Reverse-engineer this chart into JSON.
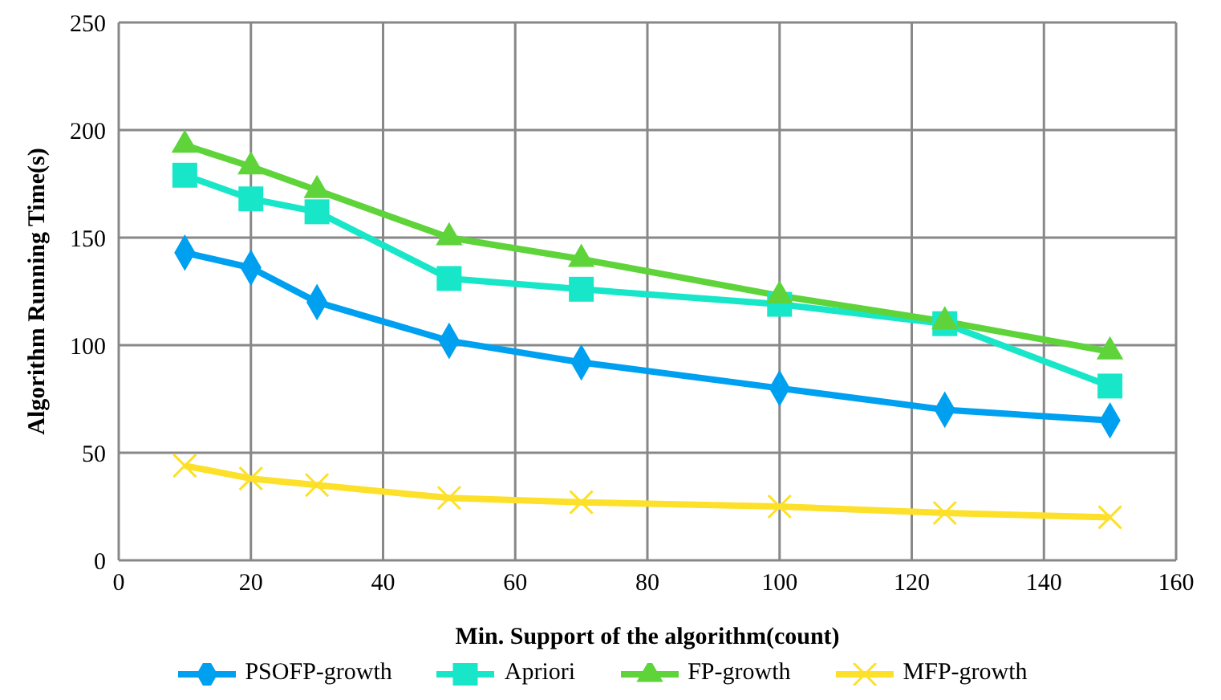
{
  "chart_data": {
    "type": "line",
    "xlabel": "Min. Support of the algorithm(count)",
    "ylabel": "Algorithm Running Time(s)",
    "x": [
      10,
      20,
      30,
      50,
      70,
      100,
      125,
      150
    ],
    "series": [
      {
        "name": "PSOFP-growth",
        "color": "#00a0f0",
        "marker": "diamond",
        "values": [
          143,
          136,
          120,
          102,
          92,
          80,
          70,
          65
        ]
      },
      {
        "name": "Apriori",
        "color": "#18e6c8",
        "marker": "square",
        "values": [
          179,
          168,
          162,
          131,
          126,
          119,
          110,
          81
        ]
      },
      {
        "name": "FP-growth",
        "color": "#5ed43a",
        "marker": "triangle",
        "values": [
          193,
          183,
          172,
          150,
          140,
          123,
          111,
          97
        ]
      },
      {
        "name": "MFP-growth",
        "color": "#fce02a",
        "marker": "cross",
        "values": [
          44,
          38,
          35,
          29,
          27,
          25,
          22,
          20
        ]
      }
    ],
    "xlim": [
      0,
      160
    ],
    "xticks": [
      0,
      20,
      40,
      60,
      80,
      100,
      120,
      140,
      160
    ],
    "ylim": [
      0,
      250
    ],
    "yticks": [
      0,
      50,
      100,
      150,
      200,
      250
    ],
    "grid": true,
    "legend": "bottom",
    "line_style": "solid"
  }
}
